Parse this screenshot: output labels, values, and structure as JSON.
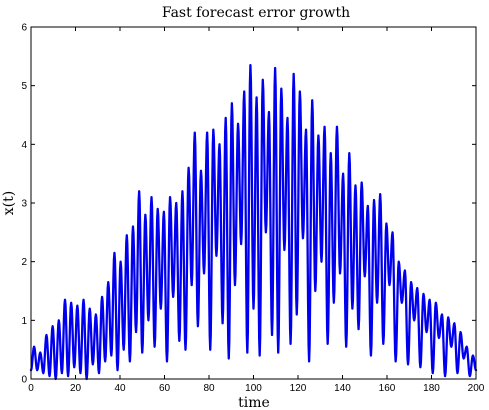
{
  "chart_data": {
    "type": "line",
    "title": "Fast forecast error growth",
    "xlabel": "time",
    "ylabel": "x(t)",
    "xlim": [
      0,
      200
    ],
    "ylim": [
      0,
      6
    ],
    "x_ticks": [
      0,
      20,
      40,
      60,
      80,
      100,
      120,
      140,
      160,
      180,
      200
    ],
    "y_ticks": [
      0,
      1,
      2,
      3,
      4,
      5,
      6
    ],
    "x_tick_labels": [
      "0",
      "20",
      "40",
      "60",
      "80",
      "100",
      "120",
      "140",
      "160",
      "180",
      "200"
    ],
    "y_tick_labels": [
      "0",
      "1",
      "2",
      "3",
      "4",
      "5",
      "6"
    ],
    "grid": false,
    "series": [
      {
        "color": "#0000ee",
        "x_start": 0,
        "x_end": 200,
        "peaks": [
          0.55,
          0.45,
          0.75,
          0.9,
          1.0,
          1.35,
          1.3,
          1.25,
          1.35,
          1.2,
          1.1,
          1.4,
          1.65,
          2.15,
          2.0,
          2.45,
          2.6,
          3.2,
          2.8,
          3.1,
          2.9,
          2.85,
          3.1,
          3.0,
          3.2,
          3.6,
          4.2,
          3.55,
          4.2,
          4.25,
          4.0,
          4.45,
          4.7,
          4.35,
          4.9,
          5.35,
          4.8,
          5.1,
          4.55,
          5.3,
          4.95,
          4.45,
          5.2,
          4.9,
          4.25,
          4.75,
          4.15,
          4.3,
          3.85,
          4.3,
          3.5,
          3.85,
          3.3,
          3.35,
          2.95,
          3.05,
          3.15,
          2.65,
          2.5,
          2.0,
          1.85,
          1.65,
          1.55,
          1.45,
          1.35,
          1.3,
          1.1,
          1.05,
          0.95,
          0.8,
          0.55,
          0.4
        ],
        "troughs": [
          0.15,
          0.1,
          0.05,
          0.0,
          0.1,
          0.05,
          0.2,
          0.1,
          0.0,
          0.25,
          0.1,
          0.3,
          0.4,
          0.15,
          0.5,
          0.3,
          0.8,
          0.45,
          1.0,
          0.55,
          1.2,
          0.3,
          1.4,
          0.65,
          0.5,
          1.6,
          0.9,
          1.8,
          0.5,
          2.1,
          0.95,
          0.35,
          1.6,
          2.3,
          0.45,
          1.2,
          0.4,
          2.5,
          0.75,
          0.45,
          2.2,
          0.6,
          1.1,
          2.4,
          0.3,
          1.5,
          2.0,
          0.6,
          1.3,
          1.8,
          0.55,
          1.2,
          0.85,
          1.75,
          0.4,
          1.3,
          0.6,
          1.6,
          0.3,
          1.3,
          0.25,
          1.0,
          0.2,
          0.8,
          0.1,
          0.7,
          0.05,
          0.55,
          0.1,
          0.35,
          0.05,
          0.15
        ]
      }
    ]
  }
}
